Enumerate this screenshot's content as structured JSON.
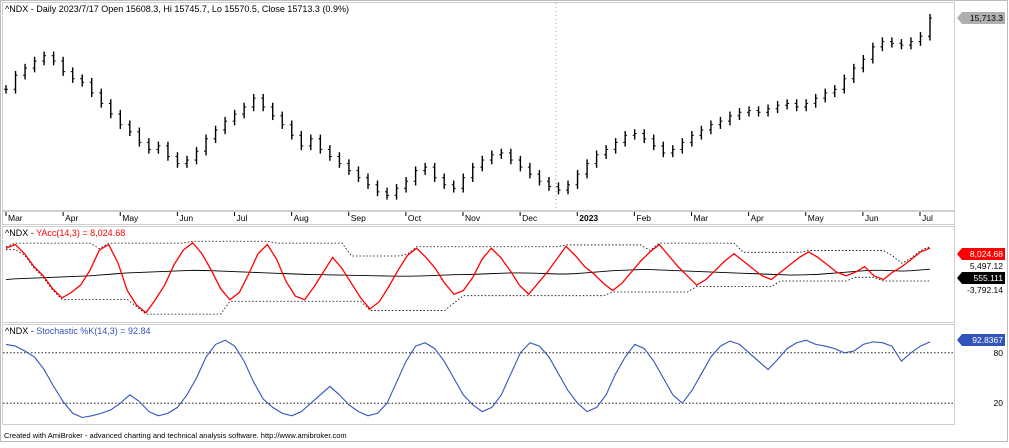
{
  "app": {
    "footer": "Created with AmiBroker - advanced charting and technical analysis software. http://www.amibroker.com"
  },
  "chart_data": [
    {
      "type": "ohlc",
      "title": "^NDX - Daily 2023/7/17 Open 15608.3, Hi 15745.7, Lo 15570.5, Close 15713.3 (0.9%)",
      "last_value_label": "15,713.3",
      "x_labels": [
        "Mar",
        "Apr",
        "May",
        "Jun",
        "Jul",
        "Aug",
        "Sep",
        "Oct",
        "Nov",
        "Dec",
        "2023",
        "Feb",
        "Mar",
        "Apr",
        "May",
        "Jun",
        "Jul"
      ],
      "separator_label": "2023",
      "ylim": [
        10400,
        16000
      ],
      "series": [
        {
          "name": "^NDX",
          "values": [
            13700,
            14100,
            14300,
            14500,
            14650,
            14500,
            14200,
            14000,
            13900,
            13600,
            13300,
            13000,
            12700,
            12500,
            12200,
            12000,
            12100,
            11800,
            11600,
            11700,
            11950,
            12300,
            12550,
            12800,
            13000,
            13200,
            13450,
            13200,
            12950,
            12700,
            12400,
            12100,
            12300,
            12000,
            11800,
            11600,
            11400,
            11200,
            11000,
            10800,
            10700,
            10900,
            11100,
            11400,
            11500,
            11200,
            11000,
            10900,
            11200,
            11500,
            11700,
            11850,
            11900,
            11700,
            11500,
            11300,
            11100,
            10950,
            10850,
            11000,
            11300,
            11600,
            11850,
            12000,
            12200,
            12400,
            12450,
            12300,
            12100,
            11900,
            12000,
            12200,
            12400,
            12550,
            12700,
            12800,
            12950,
            13050,
            13100,
            13050,
            13150,
            13250,
            13300,
            13200,
            13300,
            13450,
            13600,
            13700,
            14000,
            14300,
            14550,
            14900,
            15050,
            15000,
            14950,
            15050,
            15200,
            15713
          ]
        }
      ]
    },
    {
      "type": "line",
      "title": "^NDX - YAcc(14,3) = 8,024.68",
      "last_value_label": "8,024.68",
      "band_labels": [
        "5,497.12",
        "555.111",
        "-3,792.14"
      ],
      "ylim": [
        -11500,
        13500
      ],
      "series": [
        {
          "name": "YAcc",
          "values": [
            8000,
            9000,
            6500,
            3000,
            500,
            -3000,
            -5500,
            -4000,
            -2000,
            2000,
            7500,
            9000,
            4000,
            -3500,
            -7500,
            -9500,
            -6000,
            -2000,
            3500,
            7500,
            9500,
            6500,
            2000,
            -3000,
            -6000,
            -4000,
            1000,
            6500,
            9000,
            5000,
            -1000,
            -5000,
            -6000,
            -2500,
            1500,
            5500,
            2500,
            -1500,
            -5500,
            -8500,
            -6500,
            -2500,
            2000,
            6000,
            8000,
            5500,
            2500,
            -1500,
            -4500,
            -3500,
            0,
            5000,
            8000,
            5500,
            2000,
            -2000,
            -4500,
            -1500,
            1500,
            5000,
            8500,
            6000,
            3000,
            1000,
            -1500,
            -3500,
            -1500,
            1500,
            4500,
            7000,
            9000,
            6000,
            3000,
            500,
            -2000,
            -500,
            2000,
            4500,
            6500,
            4500,
            2500,
            500,
            -500,
            1500,
            3500,
            5500,
            7000,
            5500,
            3500,
            1500,
            500,
            1500,
            3000,
            500,
            -500,
            1500,
            3000,
            5000,
            7000,
            8024
          ]
        },
        {
          "name": "YAcc smooth",
          "values": [
            -500,
            -300,
            -200,
            -100,
            0,
            100,
            200,
            300,
            400,
            500,
            700,
            900,
            1100,
            1300,
            1400,
            1500,
            1600,
            1700,
            1800,
            1900,
            2000,
            1950,
            1900,
            1800,
            1700,
            1600,
            1500,
            1400,
            1300,
            1200,
            1100,
            1000,
            900,
            850,
            800,
            750,
            700,
            650,
            600,
            550,
            500,
            450,
            400,
            400,
            450,
            500,
            600,
            700,
            800,
            850,
            900,
            1000,
            1100,
            1200,
            1300,
            1300,
            1250,
            1200,
            1100,
            1000,
            1000,
            1100,
            1300,
            1500,
            1700,
            1900,
            2000,
            2100,
            2200,
            2200,
            2100,
            2000,
            1900,
            1800,
            1700,
            1600,
            1500,
            1400,
            1300,
            1200,
            1100,
            1000,
            900,
            800,
            700,
            750,
            800,
            900,
            1100,
            1300,
            1500,
            1700,
            1900,
            2000,
            2000,
            1900,
            1800,
            1900,
            2100,
            2300
          ]
        }
      ]
    },
    {
      "type": "line",
      "title": "^NDX - Stochastic %K(14,3) = 92.84",
      "last_value_label": "92.8367",
      "levels": [
        80,
        20
      ],
      "level_labels": [
        "80",
        "20"
      ],
      "ylim": [
        0,
        100
      ],
      "series": [
        {
          "name": "Stochastic %K",
          "values": [
            90,
            88,
            82,
            75,
            60,
            40,
            22,
            8,
            3,
            5,
            8,
            12,
            20,
            30,
            22,
            10,
            5,
            8,
            15,
            30,
            50,
            75,
            90,
            95,
            88,
            70,
            45,
            25,
            15,
            8,
            5,
            10,
            20,
            30,
            40,
            30,
            18,
            10,
            5,
            8,
            20,
            45,
            70,
            88,
            92,
            85,
            70,
            50,
            30,
            18,
            10,
            15,
            30,
            55,
            80,
            92,
            88,
            75,
            55,
            35,
            20,
            10,
            15,
            30,
            55,
            75,
            90,
            85,
            70,
            50,
            30,
            20,
            35,
            55,
            75,
            88,
            94,
            90,
            80,
            70,
            60,
            72,
            85,
            92,
            95,
            90,
            88,
            85,
            80,
            82,
            90,
            93,
            92,
            88,
            70,
            80,
            88,
            93
          ]
        }
      ]
    }
  ]
}
